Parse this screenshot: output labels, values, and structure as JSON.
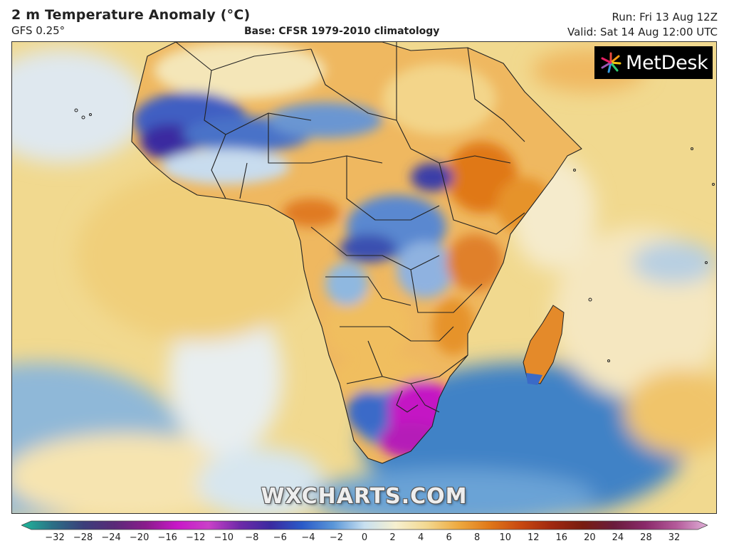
{
  "header": {
    "title": "2 m Temperature Anomaly (°C)",
    "model": "GFS 0.25°",
    "base": "Base: CFSR 1979-2010 climatology",
    "run": "Run: Fri 13 Aug 12Z",
    "valid": "Valid: Sat 14 Aug 12:00 UTC"
  },
  "logo": {
    "text": "MetDesk"
  },
  "watermark": "WXCHARTS.COM",
  "colorbar": {
    "ticks": [
      "−32",
      "−28",
      "−24",
      "−20",
      "−16",
      "−12",
      "−10",
      "−8",
      "−6",
      "−4",
      "−2",
      "0",
      "2",
      "4",
      "6",
      "8",
      "10",
      "12",
      "16",
      "20",
      "24",
      "28",
      "32"
    ],
    "colors": [
      "#1fb89a",
      "#2b6f86",
      "#3b3e7a",
      "#5a2a78",
      "#8a1c8c",
      "#c818c8",
      "#c940c8",
      "#6e2aa8",
      "#3a2aa0",
      "#2a5ac8",
      "#5a96d8",
      "#c8e0f0",
      "#f6f0d0",
      "#f3d890",
      "#eeaa40",
      "#e07818",
      "#c84810",
      "#a02810",
      "#781c10",
      "#6a1c3c",
      "#8a2a6a",
      "#b45a9a",
      "#e0b0d8"
    ],
    "extend": "both"
  },
  "colors": {
    "ocean_neutral": "#f3dea0",
    "cold_strong": "#c418c4",
    "cold": "#2a5ac8",
    "warm": "#e07818"
  }
}
